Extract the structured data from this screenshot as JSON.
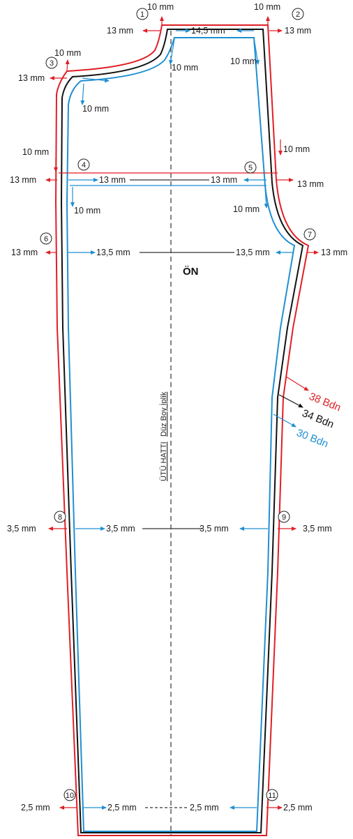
{
  "colors": {
    "size_38": "#e01f26",
    "size_34": "#111111",
    "size_30": "#1f8fd2",
    "guide": "#333333"
  },
  "title": "ÖN",
  "grain_line": {
    "part1": "ÜTÜ HATTI",
    "part2": "Düz Boy İplik"
  },
  "size_labels": [
    {
      "text": "38 Bdn",
      "color": "#e01f26"
    },
    {
      "text": "34 Bdn",
      "color": "#111111"
    },
    {
      "text": "30 Bdn",
      "color": "#1f8fd2"
    }
  ],
  "points": [
    "1",
    "2",
    "3",
    "4",
    "5",
    "6",
    "7",
    "8",
    "9",
    "10",
    "11"
  ],
  "labels": {
    "p1_top": "10 mm",
    "p1_left": "13 mm",
    "p1_right": "14,5 mm",
    "p2_top": "10 mm",
    "p2_right": "13 mm",
    "p2_inner": "10 mm",
    "p3_top": "10 mm",
    "p3_left": "13 mm",
    "p3_inner": "10 mm",
    "p1_inner": "10 mm",
    "side_left": "10 mm",
    "side_right": "10 mm",
    "p4_left": "13 mm",
    "p4_inner": "13 mm",
    "p5_inner": "13 mm",
    "p5_right": "13 mm",
    "p4_below": "10 mm",
    "p5_below": "10 mm",
    "p6_left": "13 mm",
    "p6_inner": "13,5 mm",
    "p7_inner": "13,5 mm",
    "p7_right": "13 mm",
    "p8_left": "3,5 mm",
    "p8_inner": "3,5 mm",
    "p9_inner": "3,5 mm",
    "p9_right": "3,5 mm",
    "p10_left": "2,5 mm",
    "p10_inner": "2,5 mm",
    "p11_inner": "2,5 mm",
    "p11_right": "2,5 mm"
  }
}
